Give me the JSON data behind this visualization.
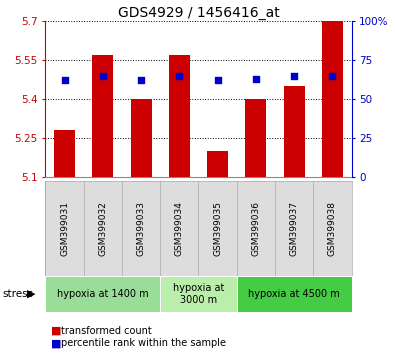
{
  "title": "GDS4929 / 1456416_at",
  "samples": [
    "GSM399031",
    "GSM399032",
    "GSM399033",
    "GSM399034",
    "GSM399035",
    "GSM399036",
    "GSM399037",
    "GSM399038"
  ],
  "bar_values": [
    5.28,
    5.57,
    5.4,
    5.57,
    5.2,
    5.4,
    5.45,
    5.7
  ],
  "bar_base": 5.1,
  "percentile_values": [
    62,
    65,
    62,
    65,
    62,
    63,
    65,
    65
  ],
  "bar_color": "#cc0000",
  "dot_color": "#0000cc",
  "ylim": [
    5.1,
    5.7
  ],
  "yticks": [
    5.1,
    5.25,
    5.4,
    5.55,
    5.7
  ],
  "ytick_labels": [
    "5.1",
    "5.25",
    "5.4",
    "5.55",
    "5.7"
  ],
  "y2lim": [
    0,
    100
  ],
  "y2ticks": [
    0,
    25,
    50,
    75,
    100
  ],
  "y2ticklabels": [
    "0",
    "25",
    "50",
    "75",
    "100%"
  ],
  "groups": [
    {
      "label": "hypoxia at 1400 m",
      "start": 0,
      "end": 3,
      "color": "#99dd99"
    },
    {
      "label": "hypoxia at\n3000 m",
      "start": 3,
      "end": 5,
      "color": "#bbeeaa"
    },
    {
      "label": "hypoxia at 4500 m",
      "start": 5,
      "end": 8,
      "color": "#44cc44"
    }
  ],
  "stress_label": "stress",
  "legend_bar_label": "transformed count",
  "legend_dot_label": "percentile rank within the sample",
  "bar_color_red": "#cc0000",
  "y2label_color": "#0000cc",
  "bar_width": 0.55,
  "bg_color": "#ffffff"
}
